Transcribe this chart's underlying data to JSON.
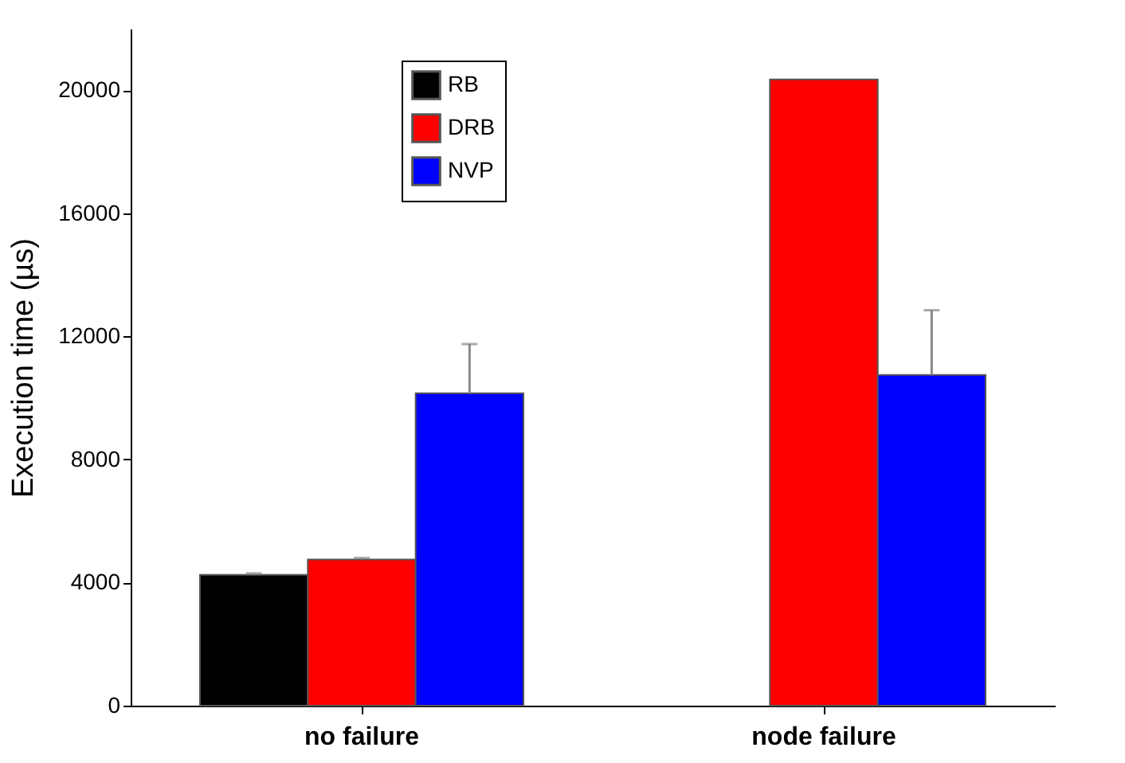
{
  "chart_data": {
    "type": "bar",
    "ylabel": "Execution time (µs)",
    "categories": [
      "no failure",
      "node failure"
    ],
    "series": [
      {
        "name": "RB",
        "color": "#000000",
        "values": [
          4250,
          null
        ],
        "errors": [
          50,
          null
        ]
      },
      {
        "name": "DRB",
        "color": "#ff0000",
        "values": [
          4750,
          20350
        ],
        "errors": [
          50,
          null
        ]
      },
      {
        "name": "NVP",
        "color": "#0000ff",
        "values": [
          10150,
          10750
        ],
        "errors": [
          1600,
          2100
        ]
      }
    ],
    "ylim": [
      0,
      22000
    ],
    "yticks": [
      0,
      4000,
      8000,
      12000,
      16000,
      20000
    ],
    "grid": false,
    "legend": "top left"
  }
}
